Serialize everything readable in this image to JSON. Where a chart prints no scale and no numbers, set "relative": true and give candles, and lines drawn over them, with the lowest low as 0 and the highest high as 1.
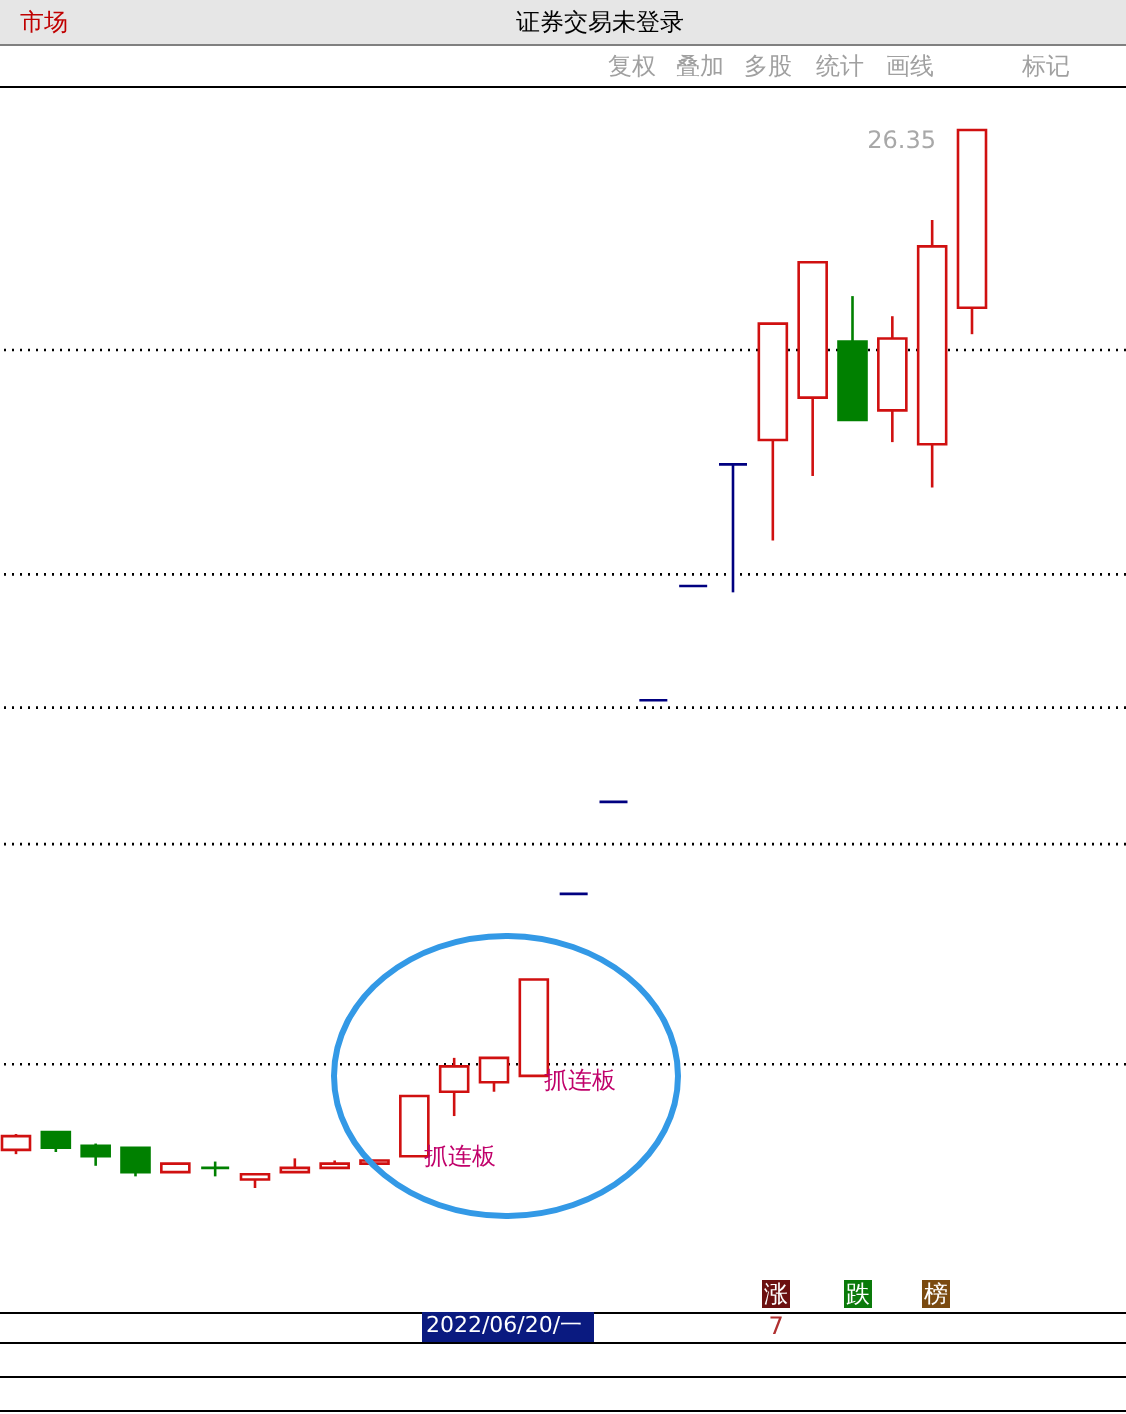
{
  "chart_data": {
    "type": "candlestick",
    "relative": true,
    "categories": [
      null,
      null,
      null,
      null,
      null,
      null,
      null,
      null,
      null,
      null,
      null,
      null,
      null,
      null,
      null,
      null,
      null,
      null,
      null,
      null,
      null,
      null,
      null,
      null,
      null
    ],
    "ohlc": [
      [
        0.036,
        0.051,
        0.032,
        0.049
      ],
      [
        0.053,
        0.053,
        0.034,
        0.038
      ],
      [
        0.04,
        0.042,
        0.021,
        0.03
      ],
      [
        0.038,
        0.038,
        0.011,
        0.015
      ],
      [
        0.015,
        0.023,
        0.015,
        0.023
      ],
      [
        0.019,
        0.025,
        0.011,
        0.019
      ],
      [
        0.008,
        0.013,
        0.0,
        0.013
      ],
      [
        0.015,
        0.028,
        0.015,
        0.019
      ],
      [
        0.019,
        0.026,
        0.019,
        0.023
      ],
      [
        0.023,
        0.026,
        0.019,
        0.026
      ],
      [
        0.03,
        0.087,
        0.03,
        0.087
      ],
      [
        0.091,
        0.123,
        0.068,
        0.115
      ],
      [
        0.1,
        0.123,
        0.091,
        0.123
      ],
      [
        0.106,
        0.197,
        0.106,
        0.197
      ],
      [
        0.278,
        0.278,
        0.278,
        0.278
      ],
      [
        0.365,
        0.365,
        0.365,
        0.365
      ],
      [
        0.461,
        0.461,
        0.461,
        0.461
      ],
      [
        0.569,
        0.569,
        0.569,
        0.569
      ],
      [
        0.684,
        0.684,
        0.563,
        0.684
      ],
      [
        0.707,
        0.817,
        0.612,
        0.817
      ],
      [
        0.747,
        0.875,
        0.673,
        0.875
      ],
      [
        0.8,
        0.843,
        0.726,
        0.726
      ],
      [
        0.735,
        0.824,
        0.705,
        0.803
      ],
      [
        0.703,
        0.915,
        0.662,
        0.89
      ],
      [
        0.832,
        1.0,
        0.807,
        1.0
      ]
    ],
    "colors": [
      "#d01010",
      "#008000",
      "#008000",
      "#008000",
      "#d01010",
      "#008000",
      "#d01010",
      "#d01010",
      "#d01010",
      "#d01010",
      "#d01010",
      "#d01010",
      "#d01010",
      "#d01010",
      "#000080",
      "#000080",
      "#000080",
      "#000080",
      "#000080",
      "#d01010",
      "#d01010",
      "#008000",
      "#d01010",
      "#d01010",
      "#d01010"
    ],
    "ref_lines": [
      {
        "axis": "y",
        "value": 0.792,
        "color": "#000000",
        "line_style": "dotted"
      },
      {
        "axis": "y",
        "value": 0.58,
        "color": "#000000",
        "line_style": "dotted"
      },
      {
        "axis": "y",
        "value": 0.454,
        "color": "#000000",
        "line_style": "dotted"
      },
      {
        "axis": "y",
        "value": 0.325,
        "color": "#000000",
        "line_style": "dotted"
      },
      {
        "axis": "y",
        "value": 0.117,
        "color": "#000000",
        "line_style": "dotted"
      }
    ],
    "annotations": [
      "抓连板",
      "抓连板",
      "26.35",
      "市场",
      "证券交易未登录",
      "复权",
      "叠加",
      "多股",
      "统计",
      "画线",
      "标记",
      "2022/06/20/一",
      "7",
      "涨",
      "跌",
      "榜"
    ],
    "marker": "none"
  }
}
